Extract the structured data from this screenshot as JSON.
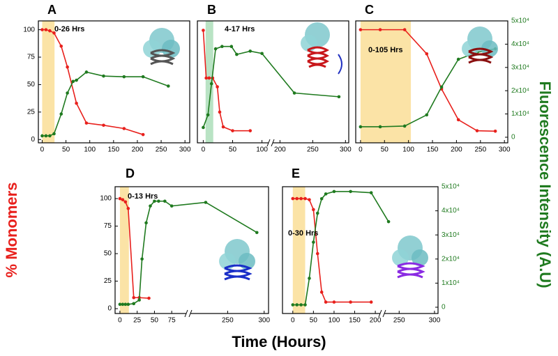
{
  "figure": {
    "ylabel": "% Monomers",
    "y2label": "Fluorescence Intensity (A.U)",
    "xlabel": "Time (Hours)"
  },
  "chart_data": [
    {
      "type": "line",
      "title": "A",
      "annotation": "0-26 Hrs",
      "shade": {
        "range": [
          0,
          26
        ],
        "color": "#fbe3a6"
      },
      "xlim": [
        -8,
        310
      ],
      "xticks": [
        0,
        50,
        100,
        150,
        200,
        250,
        300
      ],
      "ylim": [
        -3,
        108
      ],
      "yticks": [
        0,
        25,
        50,
        75,
        100
      ],
      "y2lim": [
        -2400,
        50000
      ],
      "series": [
        {
          "color": "#e8201c",
          "x": [
            0,
            8,
            16,
            25,
            40,
            53,
            72,
            93,
            129,
            172,
            212
          ],
          "values": [
            100,
            100,
            99,
            97,
            85,
            66,
            33,
            15,
            13,
            10,
            4.5
          ]
        },
        {
          "color": "#1f7a1f",
          "axis": "y2",
          "x": [
            0,
            8,
            16,
            25,
            40,
            53,
            65,
            72,
            93,
            129,
            172,
            212,
            265
          ],
          "values": [
            600,
            600,
            600,
            1500,
            10000,
            19000,
            24000,
            24500,
            28000,
            26300,
            26000,
            26000,
            22000
          ]
        }
      ]
    },
    {
      "type": "line",
      "title": "B",
      "annotation": "4-17 Hrs",
      "shade": {
        "range": [
          4,
          17
        ],
        "color": "#b9e3c4"
      },
      "xlim": [
        -10,
        305
      ],
      "xticks": [
        0,
        50,
        100,
        200,
        250,
        300
      ],
      "xbreak": [
        110,
        190
      ],
      "ylim": [
        -3,
        108
      ],
      "y2lim": [
        -2400,
        50000
      ],
      "series": [
        {
          "color": "#e8201c",
          "x": [
            0,
            5,
            10,
            16,
            24,
            28,
            34,
            50,
            80
          ],
          "values": [
            99.4,
            56,
            56,
            56,
            48,
            25,
            11.5,
            8,
            8
          ]
        },
        {
          "color": "#1f7a1f",
          "axis": "y2",
          "x": [
            0,
            8,
            14,
            21,
            32,
            48,
            57,
            80,
            100,
            222,
            290
          ],
          "values": [
            4200,
            9600,
            23000,
            38000,
            39000,
            39000,
            35600,
            37000,
            36000,
            19000,
            17400
          ]
        }
      ]
    },
    {
      "type": "line",
      "title": "C",
      "annotation": "0-105 Hrs",
      "shade": {
        "range": [
          0,
          105
        ],
        "color": "#fbe3a6"
      },
      "xlim": [
        -10,
        307
      ],
      "xticks": [
        0,
        50,
        100,
        150,
        200,
        250,
        300
      ],
      "ylim": [
        -3,
        108
      ],
      "y2lim": [
        -2400,
        50000
      ],
      "y2ticks": [
        0,
        {
          "value": 10000,
          "label": "1x10⁴"
        },
        {
          "value": 20000,
          "label": "2x10⁴"
        },
        {
          "value": 30000,
          "label": "3x10⁴"
        },
        {
          "value": 40000,
          "label": "4x10⁴"
        },
        {
          "value": 50000,
          "label": "5x10⁴"
        }
      ],
      "series": [
        {
          "color": "#e8201c",
          "x": [
            0,
            41,
            92,
            138,
            169,
            204,
            243,
            281
          ],
          "values": [
            100,
            100,
            100,
            78,
            46,
            18,
            8,
            7.6
          ]
        },
        {
          "color": "#1f7a1f",
          "axis": "y2",
          "x": [
            0,
            41,
            92,
            138,
            169,
            204,
            243,
            281
          ],
          "values": [
            4500,
            4500,
            4800,
            9600,
            21600,
            33500,
            36500,
            38000
          ]
        }
      ]
    },
    {
      "type": "line",
      "title": "D",
      "annotation": "0-13 Hrs",
      "shade": {
        "range": [
          0,
          13
        ],
        "color": "#fbe3a6"
      },
      "xlim": [
        -7,
        306
      ],
      "xticks": [
        0,
        25,
        50,
        75,
        250,
        300
      ],
      "xbreak": [
        95,
        200
      ],
      "ylim": [
        -4.4,
        110.8
      ],
      "yticks": [
        0,
        25,
        50,
        75,
        100
      ],
      "y2lim": [
        -2600,
        50000
      ],
      "series": [
        {
          "color": "#e8201c",
          "x": [
            0,
            4,
            8,
            12,
            20,
            28,
            42
          ],
          "values": [
            100,
            99,
            97,
            91,
            10,
            10,
            9.5
          ]
        },
        {
          "color": "#1f7a1f",
          "axis": "y2",
          "x": [
            0,
            4,
            8,
            12,
            20,
            28,
            32,
            38,
            44,
            50,
            56,
            65,
            75,
            220,
            290
          ],
          "values": [
            1200,
            1200,
            1200,
            1200,
            1500,
            3000,
            20000,
            35000,
            42000,
            44000,
            44000,
            44000,
            42000,
            43500,
            31000
          ]
        }
      ]
    },
    {
      "type": "line",
      "title": "E",
      "annotation": "0-30 Hrs",
      "shade": {
        "range": [
          0,
          30
        ],
        "color": "#fbe3a6"
      },
      "xlim": [
        -25,
        305
      ],
      "xticks": [
        0,
        50,
        100,
        150,
        200,
        250,
        300
      ],
      "xbreak": [
        210,
        230
      ],
      "ylim": [
        -4.4,
        110.8
      ],
      "y2lim": [
        -2600,
        50000
      ],
      "y2ticks": [
        0,
        {
          "value": 10000,
          "label": "1x10⁴"
        },
        {
          "value": 20000,
          "label": "2x10⁴"
        },
        {
          "value": 30000,
          "label": "3x10⁴"
        },
        {
          "value": 40000,
          "label": "4x10⁴"
        },
        {
          "value": 50000,
          "label": "5x10⁴"
        }
      ],
      "series": [
        {
          "color": "#e8201c",
          "x": [
            0,
            10,
            20,
            30,
            40,
            50,
            60,
            70,
            80,
            100,
            140,
            190
          ],
          "values": [
            100,
            100,
            100,
            100,
            99,
            90,
            50,
            15,
            6,
            6,
            6,
            6
          ]
        },
        {
          "color": "#1f7a1f",
          "axis": "y2",
          "x": [
            0,
            10,
            20,
            30,
            40,
            50,
            60,
            70,
            80,
            100,
            140,
            190,
            235
          ],
          "values": [
            1000,
            1000,
            1000,
            1000,
            12000,
            27000,
            39000,
            45000,
            47000,
            48000,
            48000,
            47500,
            35500
          ]
        }
      ]
    }
  ]
}
